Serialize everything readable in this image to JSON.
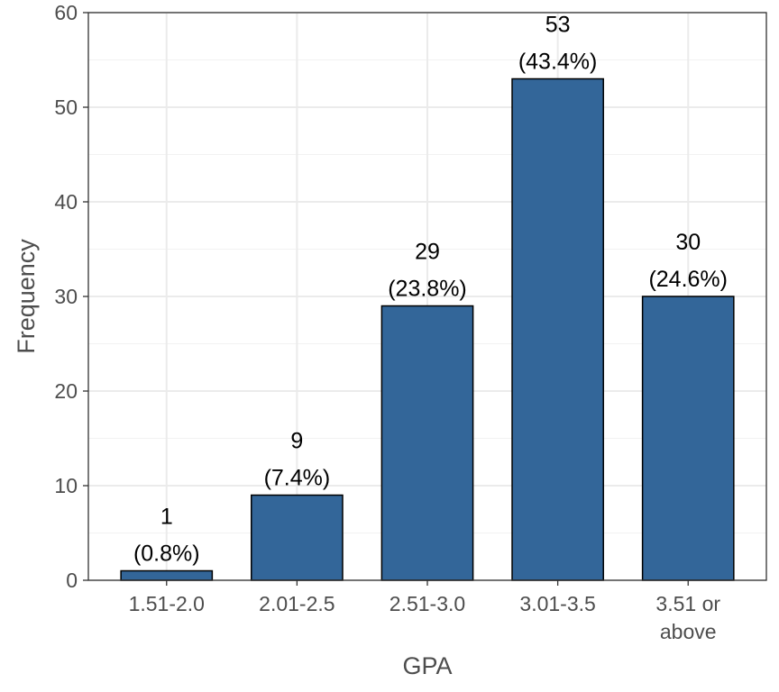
{
  "chart_data": {
    "type": "bar",
    "xlabel": "GPA",
    "ylabel": "Frequency",
    "categories": [
      "1.51-2.0",
      "2.01-2.5",
      "2.51-3.0",
      "3.01-3.5",
      "3.51 or above"
    ],
    "category_lines": [
      [
        "1.51-2.0"
      ],
      [
        "2.01-2.5"
      ],
      [
        "2.51-3.0"
      ],
      [
        "3.01-3.5"
      ],
      [
        "3.51 or",
        "above"
      ]
    ],
    "values": [
      1,
      9,
      29,
      53,
      30
    ],
    "count_labels": [
      "1",
      "9",
      "29",
      "53",
      "30"
    ],
    "percent_labels": [
      "(0.8%)",
      "(7.4%)",
      "(23.8%)",
      "(43.4%)",
      "(24.6%)"
    ],
    "ylim": [
      0,
      60
    ],
    "yticks": [
      0,
      10,
      20,
      30,
      40,
      50,
      60
    ],
    "ytick_labels": [
      "0",
      "10",
      "20",
      "30",
      "40",
      "50",
      "60"
    ],
    "bar_color": "#336699",
    "bar_border_color": "#000000",
    "grid": true,
    "legend": "none"
  }
}
